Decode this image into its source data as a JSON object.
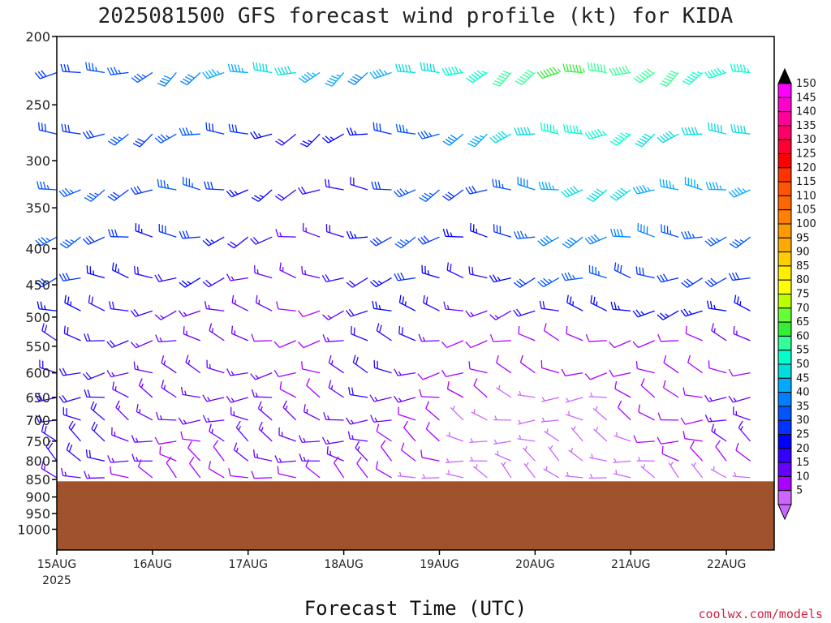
{
  "chart_data": {
    "type": "wind_barb_time_height",
    "title": "2025081500 GFS forecast wind profile (kt) for KIDA",
    "xlabel": "Forecast Time (UTC)",
    "credit": "coolwx.com/models",
    "x_tick_labels": [
      "15AUG",
      "16AUG",
      "17AUG",
      "18AUG",
      "19AUG",
      "20AUG",
      "21AUG",
      "22AUG"
    ],
    "x_year_label": "2025",
    "x_range_days": [
      0,
      7.5
    ],
    "y_axis": {
      "scale": "log-pressure inverted",
      "unit": "hPa",
      "range": [
        200,
        1070
      ],
      "tick_labels": [
        "200",
        "250",
        "300",
        "350",
        "400",
        "450",
        "500",
        "550",
        "600",
        "650",
        "700",
        "750",
        "800",
        "850",
        "900",
        "950",
        "1000"
      ]
    },
    "ground": {
      "description": "terrain below model surface",
      "pressure_top_hPa": 855,
      "color": "#a0522d"
    },
    "colorbar": {
      "unit": "kt",
      "labels": [
        "150",
        "145",
        "140",
        "135",
        "130",
        "125",
        "120",
        "115",
        "110",
        "105",
        "100",
        "95",
        "90",
        "85",
        "80",
        "75",
        "70",
        "65",
        "60",
        "55",
        "50",
        "45",
        "40",
        "35",
        "30",
        "25",
        "20",
        "15",
        "10",
        "5"
      ],
      "colors": [
        "#ff00ff",
        "#ff00cc",
        "#ff0099",
        "#ff0066",
        "#ff0033",
        "#ff0000",
        "#ff3300",
        "#ff5500",
        "#ff6600",
        "#ff8000",
        "#ff9900",
        "#ffaa00",
        "#ffcc00",
        "#ffee00",
        "#ffff00",
        "#bbff00",
        "#66ff33",
        "#33ee33",
        "#33ff99",
        "#00ffcc",
        "#00dddd",
        "#00aaff",
        "#0080ff",
        "#0055ff",
        "#0033ff",
        "#0000ff",
        "#3300ff",
        "#6600ff",
        "#aa00ff",
        "#cc66ff"
      ]
    },
    "levels_hPa": [
      225,
      275,
      330,
      385,
      440,
      490,
      540,
      600,
      650,
      700,
      750,
      800,
      845
    ],
    "times_days": [
      0,
      0.25,
      0.5,
      0.75,
      1,
      1.25,
      1.5,
      1.75,
      2,
      2.25,
      2.5,
      2.75,
      3,
      3.25,
      3.5,
      3.75,
      4,
      4.25,
      4.5,
      4.75,
      5,
      5.25,
      5.5,
      5.75,
      6,
      6.25,
      6.5,
      6.75,
      7,
      7.25
    ],
    "wind_speed_kt_by_level": {
      "225": [
        30,
        30,
        35,
        35,
        35,
        40,
        40,
        45,
        45,
        50,
        50,
        45,
        45,
        40,
        45,
        50,
        50,
        55,
        55,
        60,
        60,
        65,
        65,
        60,
        60,
        60,
        60,
        55,
        55,
        55
      ],
      "275": [
        30,
        30,
        30,
        35,
        30,
        35,
        35,
        30,
        30,
        25,
        20,
        25,
        25,
        25,
        30,
        35,
        35,
        40,
        45,
        50,
        50,
        55,
        55,
        55,
        55,
        50,
        50,
        50,
        50,
        50
      ],
      "330": [
        35,
        35,
        35,
        30,
        30,
        35,
        35,
        30,
        25,
        25,
        20,
        20,
        20,
        20,
        30,
        35,
        35,
        30,
        30,
        35,
        40,
        45,
        50,
        50,
        50,
        45,
        45,
        45,
        45,
        45
      ],
      "385": [
        35,
        35,
        30,
        30,
        25,
        30,
        30,
        25,
        20,
        20,
        15,
        15,
        20,
        25,
        30,
        35,
        30,
        25,
        25,
        30,
        35,
        40,
        40,
        40,
        40,
        40,
        35,
        35,
        35,
        35
      ],
      "440": [
        30,
        30,
        25,
        25,
        20,
        20,
        25,
        20,
        15,
        15,
        15,
        15,
        20,
        20,
        25,
        30,
        25,
        20,
        20,
        25,
        30,
        35,
        35,
        35,
        30,
        30,
        30,
        30,
        30,
        30
      ],
      "490": [
        25,
        25,
        20,
        20,
        20,
        15,
        15,
        15,
        15,
        15,
        10,
        10,
        15,
        20,
        25,
        25,
        20,
        15,
        15,
        15,
        20,
        20,
        25,
        25,
        25,
        25,
        25,
        25,
        25,
        25
      ],
      "540": [
        20,
        20,
        20,
        20,
        15,
        15,
        15,
        15,
        15,
        10,
        10,
        10,
        15,
        20,
        20,
        20,
        15,
        10,
        10,
        10,
        10,
        10,
        10,
        10,
        10,
        10,
        10,
        10,
        15,
        15
      ],
      "600": [
        20,
        20,
        20,
        15,
        15,
        15,
        15,
        15,
        15,
        15,
        10,
        10,
        15,
        20,
        20,
        15,
        10,
        10,
        10,
        10,
        10,
        10,
        10,
        10,
        10,
        10,
        10,
        10,
        10,
        10
      ],
      "650": [
        20,
        20,
        20,
        15,
        15,
        15,
        15,
        15,
        15,
        15,
        10,
        10,
        15,
        20,
        15,
        15,
        10,
        10,
        10,
        5,
        5,
        5,
        5,
        5,
        10,
        10,
        10,
        10,
        15,
        15
      ],
      "700": [
        20,
        20,
        20,
        15,
        15,
        15,
        15,
        15,
        15,
        15,
        15,
        15,
        15,
        15,
        15,
        10,
        10,
        5,
        5,
        5,
        5,
        5,
        5,
        5,
        10,
        10,
        10,
        10,
        15,
        15
      ],
      "750": [
        20,
        20,
        20,
        15,
        15,
        10,
        10,
        15,
        15,
        15,
        15,
        15,
        15,
        15,
        10,
        10,
        10,
        5,
        5,
        5,
        5,
        5,
        5,
        5,
        5,
        10,
        10,
        10,
        15,
        15
      ],
      "800": [
        20,
        20,
        20,
        15,
        15,
        10,
        10,
        10,
        15,
        15,
        15,
        15,
        15,
        15,
        10,
        10,
        10,
        5,
        5,
        5,
        5,
        5,
        5,
        5,
        5,
        5,
        10,
        10,
        10,
        10
      ],
      "845": [
        15,
        15,
        15,
        10,
        10,
        10,
        10,
        10,
        10,
        10,
        10,
        10,
        10,
        10,
        10,
        5,
        5,
        5,
        5,
        5,
        5,
        5,
        5,
        5,
        5,
        5,
        5,
        5,
        5,
        5
      ]
    }
  }
}
